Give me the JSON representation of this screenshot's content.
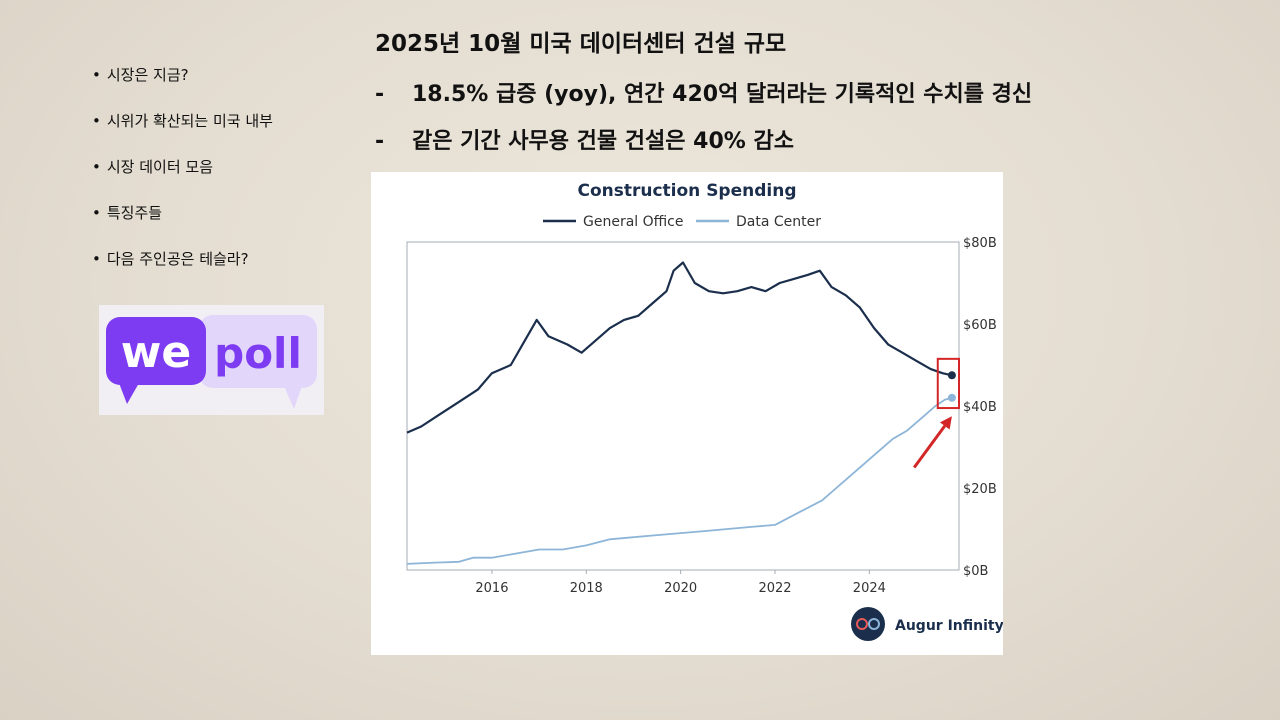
{
  "sidebar": {
    "items": [
      {
        "label": "시장은 지금?"
      },
      {
        "label": "시위가 확산되는 미국 내부"
      },
      {
        "label": "시장 데이터 모음"
      },
      {
        "label": "특징주들"
      },
      {
        "label": "다음 주인공은 테슬라?"
      }
    ]
  },
  "logo": {
    "word1": "we",
    "word2": "poll",
    "colors": {
      "primary": "#7d3cf2",
      "secondary": "#e3d6fb"
    }
  },
  "headline": {
    "title": "2025년 10월 미국 데이터센터 건설 규모",
    "bullets": [
      {
        "dash": "-",
        "text": "18.5% 급증 (yoy), 연간 420억 달러라는 기록적인 수치를 경신"
      },
      {
        "dash": "-",
        "text": "같은 기간 사무용 건물 건설은 40% 감소"
      }
    ]
  },
  "chart_data": {
    "type": "line",
    "title": "Construction Spending",
    "xlabel": "",
    "ylabel": "",
    "xlim": [
      2014.2,
      2025.9
    ],
    "ylim": [
      0,
      80
    ],
    "x_ticks": [
      "2016",
      "2018",
      "2020",
      "2022",
      "2024"
    ],
    "y_ticks": [
      "$0B",
      "$20B",
      "$40B",
      "$60B",
      "$80B"
    ],
    "y_axis_side": "right",
    "grid": false,
    "legend_position": "top",
    "series": [
      {
        "name": "General Office",
        "color": "#1b2f4d",
        "x": [
          2014.2,
          2014.5,
          2014.9,
          2015.3,
          2015.7,
          2016.0,
          2016.4,
          2016.7,
          2016.95,
          2017.2,
          2017.6,
          2017.9,
          2018.2,
          2018.5,
          2018.8,
          2019.1,
          2019.4,
          2019.7,
          2019.85,
          2020.05,
          2020.3,
          2020.6,
          2020.9,
          2021.2,
          2021.5,
          2021.8,
          2022.1,
          2022.4,
          2022.7,
          2022.95,
          2023.2,
          2023.5,
          2023.8,
          2024.1,
          2024.4,
          2024.7,
          2025.0,
          2025.3,
          2025.55,
          2025.75
        ],
        "values": [
          33.5,
          35,
          38,
          41,
          44,
          48,
          50,
          56,
          61,
          57,
          55,
          53,
          56,
          59,
          61,
          62,
          65,
          68,
          73,
          75,
          70,
          68,
          67.5,
          68,
          69,
          68,
          70,
          71,
          72,
          73,
          69,
          67,
          64,
          59,
          55,
          53,
          51,
          49,
          48,
          47.5
        ]
      },
      {
        "name": "Data Center",
        "color": "#8db5d8",
        "x": [
          2014.2,
          2014.8,
          2015.3,
          2015.6,
          2016.0,
          2016.5,
          2017.0,
          2017.5,
          2018.0,
          2018.5,
          2019.0,
          2019.5,
          2020.0,
          2020.5,
          2021.0,
          2021.5,
          2022.0,
          2022.5,
          2023.0,
          2023.3,
          2023.6,
          2023.9,
          2024.2,
          2024.5,
          2024.8,
          2025.1,
          2025.4,
          2025.6,
          2025.75
        ],
        "values": [
          1.5,
          1.8,
          2,
          3,
          3,
          4,
          5,
          5,
          6,
          7.5,
          8,
          8.5,
          9,
          9.5,
          10,
          10.5,
          11,
          14,
          17,
          20,
          23,
          26,
          29,
          32,
          34,
          37,
          40,
          41.5,
          42
        ]
      }
    ],
    "highlight": {
      "x_range": [
        2025.45,
        2025.9
      ],
      "y_range": [
        39.5,
        51.5
      ],
      "color": "#d32626"
    },
    "annotation_arrow": {
      "from": [
        2024.95,
        25
      ],
      "to": [
        2025.75,
        37.5
      ],
      "color": "#d32626"
    },
    "source": "Augur Infinity"
  }
}
